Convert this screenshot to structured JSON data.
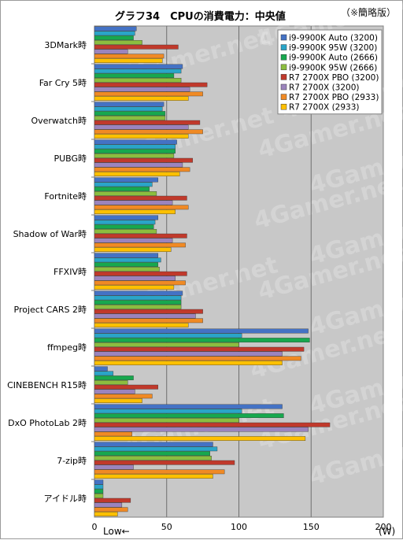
{
  "chart_data": {
    "type": "bar",
    "orientation": "horizontal",
    "title": "グラフ34　CPUの消費電力：中央値",
    "note": "（※簡略版）",
    "xlabel": "Low←",
    "unit": "(W)",
    "xlim": [
      0,
      200
    ],
    "xticks": [
      0,
      50,
      100,
      150,
      200
    ],
    "grid": true,
    "legend_position": "top-right",
    "categories": [
      "3DMark時",
      "Far Cry 5時",
      "Overwatch時",
      "PUBG時",
      "Fortnite時",
      "Shadow of War時",
      "FFXIV時",
      "Project CARS 2時",
      "ffmpeg時",
      "CINEBENCH R15時",
      "DxO PhotoLab 2時",
      "7-zip時",
      "アイドル時"
    ],
    "series": [
      {
        "name": "i9-9900K Auto (3200)",
        "color": "#4472c4",
        "values": [
          29,
          61,
          48,
          57,
          44,
          44,
          44,
          61,
          148,
          9,
          130,
          82,
          6
        ]
      },
      {
        "name": "i9-9900K 95W (3200)",
        "color": "#2aa5c8",
        "values": [
          28,
          60,
          47,
          56,
          40,
          42,
          46,
          60,
          102,
          13,
          102,
          85,
          6
        ]
      },
      {
        "name": "i9-9900K Auto (2666)",
        "color": "#17a84e",
        "values": [
          27,
          55,
          49,
          56,
          38,
          41,
          44,
          60,
          149,
          27,
          131,
          80,
          6
        ]
      },
      {
        "name": "i9-9900K 95W (2666)",
        "color": "#8cbd3f",
        "values": [
          33,
          60,
          49,
          55,
          43,
          43,
          45,
          60,
          100,
          23,
          100,
          81,
          6
        ]
      },
      {
        "name": "R7 2700X PBO (3200)",
        "color": "#c0392b",
        "values": [
          58,
          78,
          73,
          68,
          64,
          64,
          64,
          75,
          145,
          44,
          163,
          97,
          25
        ]
      },
      {
        "name": "R7 2700X (3200)",
        "color": "#9b84bd",
        "values": [
          23,
          66,
          65,
          61,
          54,
          54,
          56,
          70,
          130,
          28,
          148,
          27,
          19
        ]
      },
      {
        "name": "R7 2700X PBO (2933)",
        "color": "#f08a24",
        "values": [
          48,
          75,
          75,
          66,
          65,
          63,
          63,
          75,
          143,
          40,
          26,
          90,
          23
        ]
      },
      {
        "name": "R7 2700X (2933)",
        "color": "#ffc000",
        "values": [
          47,
          65,
          65,
          59,
          56,
          53,
          55,
          65,
          130,
          33,
          146,
          82,
          16
        ]
      }
    ]
  }
}
